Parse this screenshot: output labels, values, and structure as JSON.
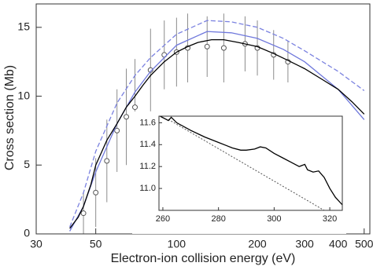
{
  "chart_data": [
    {
      "type": "line",
      "x_label": "Electron-ion collision energy (eV)",
      "y_label": "Cross section (Mb)",
      "xscale": "log",
      "xlim": [
        30,
        525
      ],
      "xticks": [
        30,
        50,
        100,
        200,
        300,
        400,
        500
      ],
      "ylim": [
        0,
        16.7
      ],
      "yticks": [
        0,
        5,
        10,
        15
      ],
      "series": [
        {
          "color": "#8c8c8c",
          "mode": "markers",
          "x": [
            45,
            50,
            55,
            60,
            65,
            70,
            80,
            90,
            100,
            110,
            130,
            150,
            180,
            200,
            230,
            260
          ],
          "values": [
            1.5,
            3,
            5.3,
            7.5,
            8.5,
            9.2,
            11.9,
            13,
            13.2,
            13.5,
            13.6,
            13.5,
            13.8,
            13.5,
            13,
            12.5
          ],
          "errors": [
            1.5,
            2.5,
            3,
            3,
            3.5,
            3.5,
            3,
            2.5,
            2.5,
            2.5,
            2.2,
            2.5,
            2,
            2,
            1.8,
            1.5
          ]
        },
        {
          "color": "#7b82e0",
          "dash": true,
          "x": [
            40,
            45,
            50,
            60,
            70,
            80,
            100,
            130,
            160,
            200,
            250,
            300,
            400,
            500
          ],
          "values": [
            0.5,
            3,
            6,
            9.5,
            11.5,
            12.8,
            14.5,
            15.5,
            15.4,
            15,
            14.2,
            13.3,
            11.8,
            10.4
          ]
        },
        {
          "color": "#6f78dc",
          "x": [
            40,
            45,
            50,
            60,
            70,
            80,
            100,
            130,
            160,
            200,
            250,
            300,
            400,
            500
          ],
          "values": [
            0.2,
            2,
            4.5,
            8,
            10.3,
            11.8,
            13.7,
            14.7,
            14.6,
            14.2,
            13.4,
            12.5,
            10.5,
            8.3
          ]
        },
        {
          "color": "#000000",
          "x": [
            40,
            43,
            45,
            48,
            50,
            55,
            60,
            65,
            70,
            75,
            80,
            90,
            100,
            110,
            120,
            135,
            150,
            170,
            200,
            230,
            260,
            300,
            350,
            400,
            450,
            500
          ],
          "values": [
            0.4,
            1.2,
            2,
            3.6,
            5,
            6.8,
            8,
            9.2,
            10,
            10.8,
            11.5,
            12.5,
            13.2,
            13.6,
            13.9,
            14.1,
            14.1,
            13.9,
            13.6,
            13.1,
            12.6,
            12,
            11.2,
            10.5,
            9.6,
            8.7
          ]
        }
      ]
    },
    {
      "type": "line",
      "xlim": [
        258.6,
        324.5
      ],
      "xticks": [
        260,
        280,
        300,
        320
      ],
      "ylim": [
        10.8,
        11.66
      ],
      "yticks": [
        {
          "value": 11,
          "label": "11.0"
        },
        {
          "value": 11.2,
          "label": "11.2"
        },
        {
          "value": 11.4,
          "label": "11.4"
        },
        {
          "value": 11.6,
          "label": "11.6"
        }
      ],
      "series": [
        {
          "color": "#555555",
          "dotted": true,
          "x": [
            262,
            318
          ],
          "values": [
            11.63,
            10.8
          ]
        },
        {
          "color": "#000000",
          "x": [
            259,
            262,
            263,
            265,
            270,
            275,
            280,
            283,
            285,
            288,
            290,
            293,
            295,
            297,
            300,
            303,
            306,
            309,
            311,
            312,
            314,
            316,
            318,
            320,
            322,
            324.5
          ],
          "values": [
            11.66,
            11.62,
            11.65,
            11.6,
            11.53,
            11.47,
            11.42,
            11.39,
            11.37,
            11.35,
            11.35,
            11.36,
            11.38,
            11.37,
            11.32,
            11.28,
            11.24,
            11.2,
            11.22,
            11.17,
            11.15,
            11.16,
            11.1,
            11.0,
            10.92,
            10.85
          ]
        }
      ]
    }
  ]
}
